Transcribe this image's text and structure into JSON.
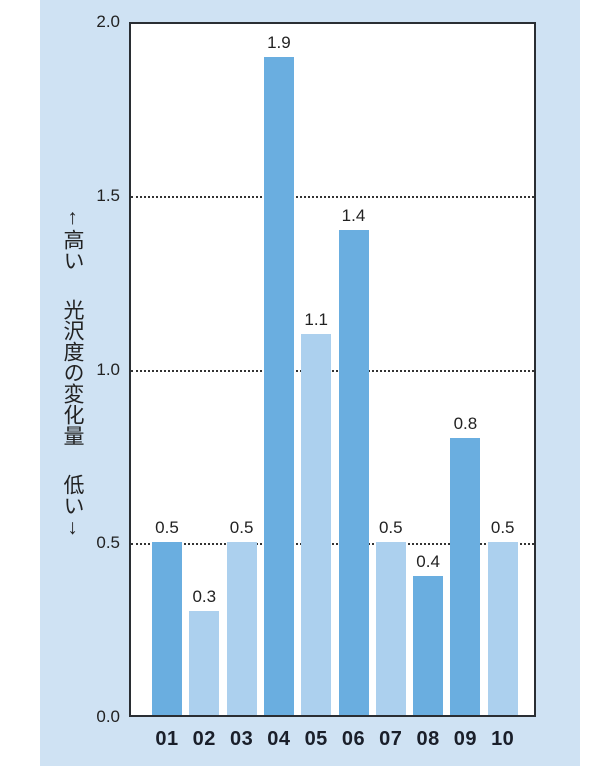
{
  "chart_data": {
    "type": "bar",
    "title": "",
    "xlabel": "",
    "ylabel": "↑高い　光沢度の変化量　低い↓",
    "ylabel_parts": {
      "top": "↑高い",
      "middle": "光沢度の変化量",
      "bottom": "低い↓"
    },
    "ylim": [
      0.0,
      2.0
    ],
    "yticks": [
      "0.0",
      "0.5",
      "1.0",
      "1.5",
      "2.0"
    ],
    "grid": "horizontal dotted at 0.5, 1.0, 1.5",
    "categories": [
      "01",
      "02",
      "03",
      "04",
      "05",
      "06",
      "07",
      "08",
      "09",
      "10"
    ],
    "values": [
      0.5,
      0.3,
      0.5,
      1.9,
      1.1,
      1.4,
      0.5,
      0.4,
      0.8,
      0.5
    ],
    "value_labels": [
      "0.5",
      "0.3",
      "0.5",
      "1.9",
      "1.1",
      "1.4",
      "0.5",
      "0.4",
      "0.8",
      "0.5"
    ],
    "bar_colors": [
      "#6aaee0",
      "#acd0ee",
      "#acd0ee",
      "#6aaee0",
      "#acd0ee",
      "#6aaee0",
      "#acd0ee",
      "#6aaee0",
      "#6aaee0",
      "#acd0ee"
    ],
    "legend": null
  },
  "colors": {
    "panel_bg": "#cfe2f3",
    "plot_bg": "#ffffff",
    "bar_dark": "#6aaee0",
    "bar_light": "#acd0ee",
    "axis": "#2a2e33"
  }
}
